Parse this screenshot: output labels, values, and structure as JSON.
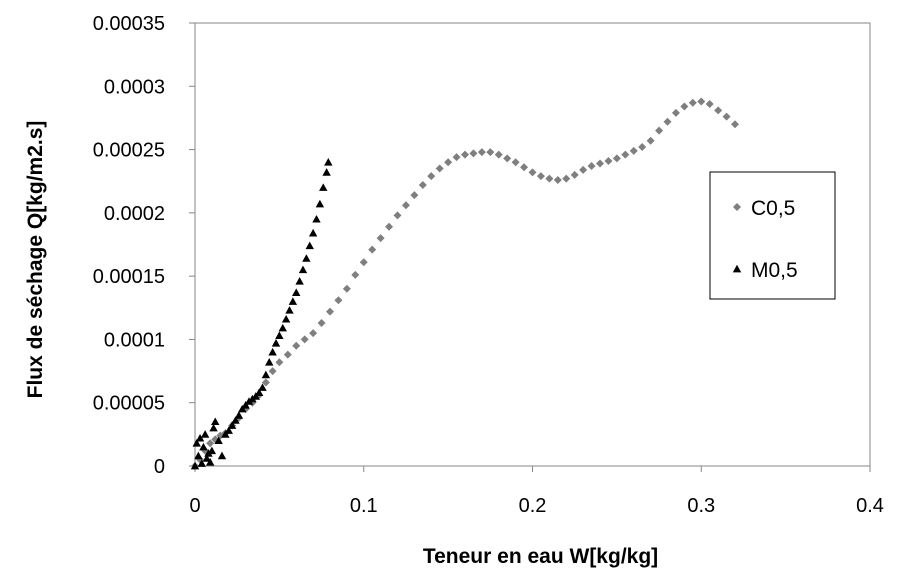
{
  "chart_data": {
    "type": "scatter",
    "title": "",
    "xlabel": "Teneur en eau W[kg/kg]",
    "ylabel": "Flux de séchage Q[kg/m2.s]",
    "xlim": [
      0,
      0.4
    ],
    "ylim": [
      0,
      0.00035
    ],
    "x_ticks": [
      "0",
      "0.1",
      "0.2",
      "0.3",
      "0.4"
    ],
    "y_ticks": [
      "0",
      "0.00005",
      "0.0001",
      "0.00015",
      "0.0002",
      "0.00025",
      "0.0003",
      "0.00035"
    ],
    "grid": false,
    "legend_position": "right",
    "series": [
      {
        "name": "C0,5",
        "marker": "diamond",
        "color": "#7f7f7f",
        "points": [
          [
            0.0,
            0.0
          ],
          [
            0.003,
            5e-06
          ],
          [
            0.006,
            1.2e-05
          ],
          [
            0.009,
            1.8e-05
          ],
          [
            0.012,
            2.1e-05
          ],
          [
            0.015,
            2.4e-05
          ],
          [
            0.018,
            2.6e-05
          ],
          [
            0.022,
            3.2e-05
          ],
          [
            0.026,
            3.8e-05
          ],
          [
            0.03,
            4.5e-05
          ],
          [
            0.034,
            5e-05
          ],
          [
            0.038,
            5.6e-05
          ],
          [
            0.042,
            6.6e-05
          ],
          [
            0.046,
            7.5e-05
          ],
          [
            0.05,
            8.2e-05
          ],
          [
            0.055,
            8.8e-05
          ],
          [
            0.06,
            9.5e-05
          ],
          [
            0.065,
            0.0001
          ],
          [
            0.07,
            0.000105
          ],
          [
            0.075,
            0.000113
          ],
          [
            0.08,
            0.000122
          ],
          [
            0.085,
            0.000131
          ],
          [
            0.09,
            0.00014
          ],
          [
            0.095,
            0.000151
          ],
          [
            0.1,
            0.000161
          ],
          [
            0.105,
            0.000171
          ],
          [
            0.11,
            0.00018
          ],
          [
            0.115,
            0.000189
          ],
          [
            0.12,
            0.000198
          ],
          [
            0.125,
            0.000206
          ],
          [
            0.13,
            0.000214
          ],
          [
            0.135,
            0.000222
          ],
          [
            0.14,
            0.000229
          ],
          [
            0.145,
            0.000235
          ],
          [
            0.15,
            0.00024
          ],
          [
            0.155,
            0.000244
          ],
          [
            0.16,
            0.000246
          ],
          [
            0.165,
            0.000247
          ],
          [
            0.17,
            0.000248
          ],
          [
            0.175,
            0.000248
          ],
          [
            0.18,
            0.000246
          ],
          [
            0.185,
            0.000243
          ],
          [
            0.19,
            0.00024
          ],
          [
            0.195,
            0.000236
          ],
          [
            0.2,
            0.000232
          ],
          [
            0.205,
            0.000229
          ],
          [
            0.21,
            0.000227
          ],
          [
            0.215,
            0.000226
          ],
          [
            0.22,
            0.000227
          ],
          [
            0.225,
            0.00023
          ],
          [
            0.23,
            0.000234
          ],
          [
            0.235,
            0.000237
          ],
          [
            0.24,
            0.000239
          ],
          [
            0.245,
            0.000241
          ],
          [
            0.25,
            0.000243
          ],
          [
            0.255,
            0.000246
          ],
          [
            0.26,
            0.000249
          ],
          [
            0.265,
            0.000252
          ],
          [
            0.27,
            0.000257
          ],
          [
            0.275,
            0.000265
          ],
          [
            0.28,
            0.000272
          ],
          [
            0.285,
            0.000279
          ],
          [
            0.29,
            0.000284
          ],
          [
            0.295,
            0.000287
          ],
          [
            0.3,
            0.000288
          ],
          [
            0.305,
            0.000286
          ],
          [
            0.31,
            0.000281
          ],
          [
            0.315,
            0.000276
          ],
          [
            0.32,
            0.00027
          ]
        ]
      },
      {
        "name": "M0,5",
        "marker": "triangle",
        "color": "#000000",
        "points": [
          [
            0.0,
            0.0
          ],
          [
            0.001,
            1.8e-05
          ],
          [
            0.002,
            8e-06
          ],
          [
            0.003,
            2.2e-05
          ],
          [
            0.004,
            2e-06
          ],
          [
            0.005,
            1.5e-05
          ],
          [
            0.006,
            2.5e-05
          ],
          [
            0.007,
            6e-06
          ],
          [
            0.008,
            1e-05
          ],
          [
            0.009,
            3e-06
          ],
          [
            0.01,
            1.2e-05
          ],
          [
            0.011,
            3e-05
          ],
          [
            0.012,
            3.5e-05
          ],
          [
            0.014,
            2e-05
          ],
          [
            0.016,
            8e-06
          ],
          [
            0.018,
            2.5e-05
          ],
          [
            0.02,
            2.8e-05
          ],
          [
            0.022,
            3.2e-05
          ],
          [
            0.024,
            3.6e-05
          ],
          [
            0.026,
            4e-05
          ],
          [
            0.028,
            4.5e-05
          ],
          [
            0.03,
            4.8e-05
          ],
          [
            0.032,
            5.1e-05
          ],
          [
            0.034,
            5.3e-05
          ],
          [
            0.036,
            5.5e-05
          ],
          [
            0.038,
            5.8e-05
          ],
          [
            0.04,
            6.2e-05
          ],
          [
            0.042,
            7.2e-05
          ],
          [
            0.044,
            8.2e-05
          ],
          [
            0.046,
            9e-05
          ],
          [
            0.048,
            9.7e-05
          ],
          [
            0.05,
            0.000103
          ],
          [
            0.052,
            0.000109
          ],
          [
            0.054,
            0.000116
          ],
          [
            0.056,
            0.000123
          ],
          [
            0.058,
            0.00013
          ],
          [
            0.06,
            0.000137
          ],
          [
            0.062,
            0.000146
          ],
          [
            0.064,
            0.000155
          ],
          [
            0.066,
            0.000164
          ],
          [
            0.068,
            0.000174
          ],
          [
            0.07,
            0.000184
          ],
          [
            0.072,
            0.000195
          ],
          [
            0.074,
            0.000207
          ],
          [
            0.076,
            0.00022
          ],
          [
            0.078,
            0.000232
          ],
          [
            0.079,
            0.00024
          ]
        ]
      }
    ]
  }
}
